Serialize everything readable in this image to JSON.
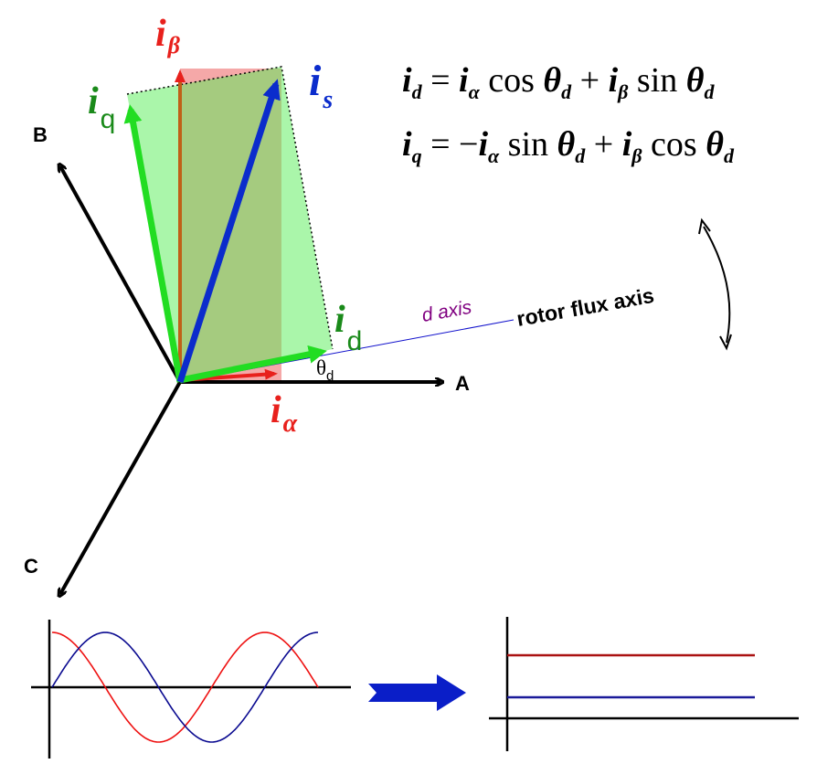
{
  "axes": {
    "a_label": "A",
    "b_label": "B",
    "c_label": "C",
    "d_axis_label": "d axis",
    "rotor_flux_label": "rotor flux axis",
    "theta_symbol": "θ",
    "theta_sub": "d"
  },
  "vectors": {
    "i_beta": {
      "main": "i",
      "sub": "β"
    },
    "i_alpha": {
      "main": "i",
      "sub": "α"
    },
    "i_s": {
      "main": "i",
      "sub": "s"
    },
    "i_q": {
      "main": "i",
      "sub": "q"
    },
    "i_d": {
      "main": "i",
      "sub": "d"
    }
  },
  "equations": {
    "eq1": {
      "lhs_main": "i",
      "lhs_sub": "d",
      "eq": " = ",
      "t1_main": "i",
      "t1_sub": "α",
      "t1_fn": " cos ",
      "t1_ang": "θ",
      "t1_ang_sub": "d",
      "op": " + ",
      "t2_main": "i",
      "t2_sub": "β",
      "t2_fn": " sin ",
      "t2_ang": "θ",
      "t2_ang_sub": "d"
    },
    "eq2": {
      "lhs_main": "i",
      "lhs_sub": "q",
      "eq": " = −",
      "t1_main": "i",
      "t1_sub": "α",
      "t1_fn": " sin ",
      "t1_ang": "θ",
      "t1_ang_sub": "d",
      "op": " + ",
      "t2_main": "i",
      "t2_sub": "β",
      "t2_fn": " cos ",
      "t2_ang": "θ",
      "t2_ang_sub": "d"
    }
  },
  "colors": {
    "alpha_beta": "#e8201c",
    "q_green": "#22dd22",
    "s_blue": "#0b2ccc",
    "label_green": "#1a8a1a",
    "d_axis_purple": "#800080",
    "sine_red": "#ee1111",
    "sine_blue": "#0a0a90"
  }
}
